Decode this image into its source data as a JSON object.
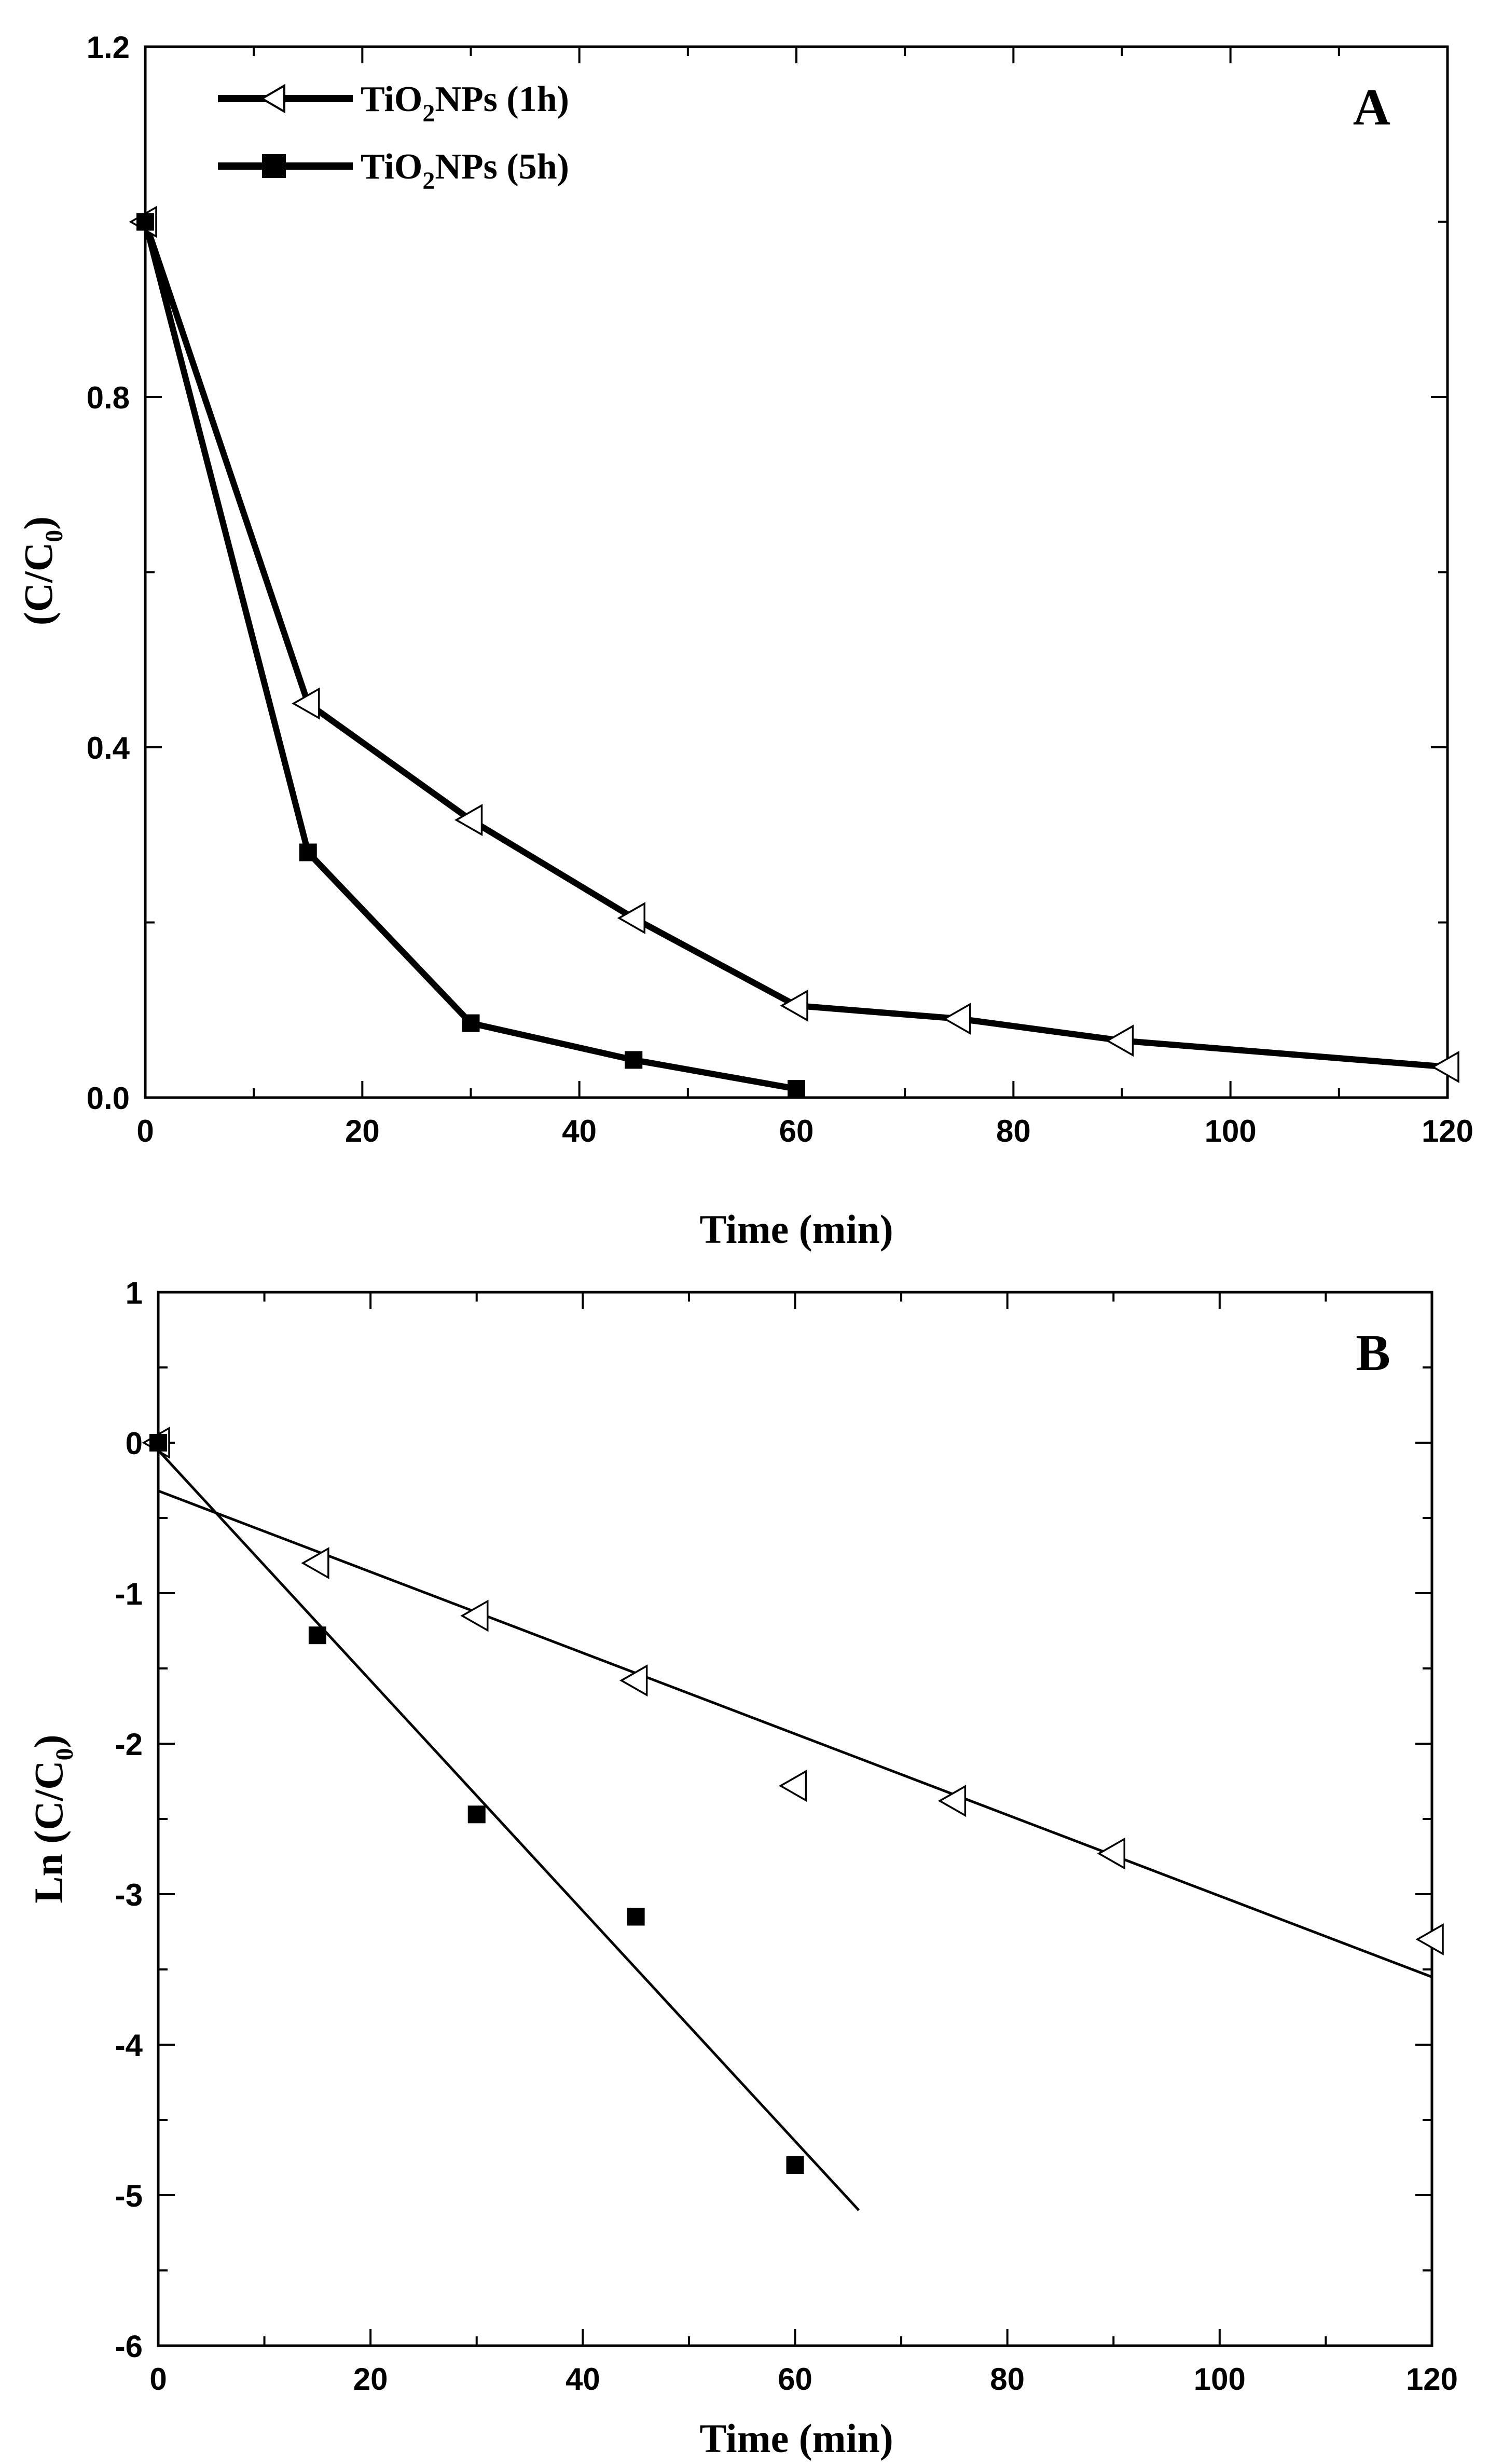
{
  "chart_data": [
    {
      "panel": "A",
      "type": "line",
      "x_title": "Time (min)",
      "y_title_main": "(C/C",
      "y_title_sub": "0",
      "y_title_end": ")",
      "xlim": [
        0,
        120
      ],
      "ylim": [
        0,
        1.2
      ],
      "x_ticks": [
        0,
        20,
        40,
        60,
        80,
        100,
        120
      ],
      "y_ticks": [
        0.0,
        0.4,
        0.8,
        1.2
      ],
      "y_tick_labels": [
        "0.0",
        "0.4",
        "0.8",
        "1.2"
      ],
      "legend": [
        {
          "main": "TiO",
          "sub": "2",
          "end": "NPs (1h)",
          "marker": "triangle-left"
        },
        {
          "main": "TiO",
          "sub": "2",
          "end": "NPs (5h)",
          "marker": "square"
        }
      ],
      "series": [
        {
          "name": "TiO2NPs (1h)",
          "marker": "triangle-left",
          "x": [
            0,
            15,
            30,
            45,
            60,
            75,
            90,
            120
          ],
          "y": [
            1.0,
            0.45,
            0.317,
            0.205,
            0.105,
            0.09,
            0.065,
            0.035
          ]
        },
        {
          "name": "TiO2NPs (5h)",
          "marker": "square",
          "x": [
            0,
            15,
            30,
            45,
            60
          ],
          "y": [
            1.0,
            0.28,
            0.085,
            0.043,
            0.01
          ]
        }
      ]
    },
    {
      "panel": "B",
      "type": "scatter",
      "x_title": "Time (min)",
      "y_title_main": "Ln (C/C",
      "y_title_sub": "0",
      "y_title_end": ")",
      "xlim": [
        0,
        120
      ],
      "ylim": [
        -6,
        1
      ],
      "x_ticks": [
        0,
        20,
        40,
        60,
        80,
        100,
        120
      ],
      "y_ticks": [
        1,
        0,
        -1,
        -2,
        -3,
        -4,
        -5,
        -6
      ],
      "y_tick_labels": [
        "1",
        "0",
        "-1",
        "-2",
        "-3",
        "-4",
        "-5",
        "-6"
      ],
      "series": [
        {
          "name": "TiO2NPs (1h)",
          "marker": "triangle-left",
          "x": [
            0,
            15,
            30,
            45,
            60,
            75,
            90,
            120
          ],
          "y": [
            0,
            -0.8,
            -1.15,
            -1.58,
            -2.28,
            -2.38,
            -2.73,
            -3.3
          ]
        },
        {
          "name": "TiO2NPs (5h)",
          "marker": "square",
          "x": [
            0,
            15,
            30,
            45,
            60
          ],
          "y": [
            0,
            -1.28,
            -2.47,
            -3.15,
            -4.8
          ]
        }
      ],
      "fit_lines": [
        {
          "name": "fit-1h",
          "x": [
            0,
            120
          ],
          "y": [
            -0.32,
            -3.55
          ]
        },
        {
          "name": "fit-5h",
          "x": [
            0,
            66
          ],
          "y": [
            -0.05,
            -5.1
          ]
        }
      ]
    }
  ]
}
